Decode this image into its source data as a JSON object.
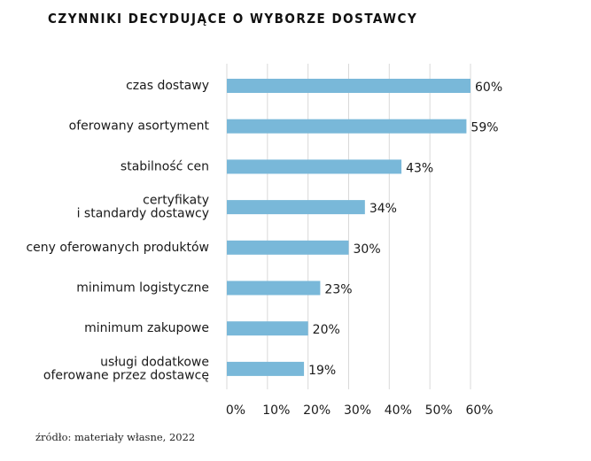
{
  "chart_data": {
    "type": "bar",
    "orientation": "horizontal",
    "title": "CZYNNIKI DECYDUJĄCE O WYBORZE DOSTAWCY",
    "categories": [
      [
        "czas dostawy"
      ],
      [
        "oferowany asortyment"
      ],
      [
        "stabilność cen"
      ],
      [
        "certyfikaty",
        "i standardy dostawcy"
      ],
      [
        "ceny oferowanych produktów"
      ],
      [
        "minimum logistyczne"
      ],
      [
        "minimum zakupowe"
      ],
      [
        "usługi dodatkowe",
        "oferowane przez dostawcę"
      ]
    ],
    "values": [
      60,
      59,
      43,
      34,
      30,
      23,
      20,
      19
    ],
    "value_labels": [
      "60%",
      "59%",
      "43%",
      "34%",
      "30%",
      "23%",
      "20%",
      "19%"
    ],
    "xlim": [
      0,
      60
    ],
    "xticks": [
      0,
      10,
      20,
      30,
      40,
      50,
      60
    ],
    "xtick_labels": [
      "0%",
      "10%",
      "20%",
      "30%",
      "40%",
      "50%",
      "60%"
    ],
    "grid": "vertical",
    "bar_color": "#79b8d9",
    "grid_color": "#d9d9d9",
    "xlabel": "",
    "ylabel": ""
  },
  "source_note": "źródło: materiały własne, 2022"
}
